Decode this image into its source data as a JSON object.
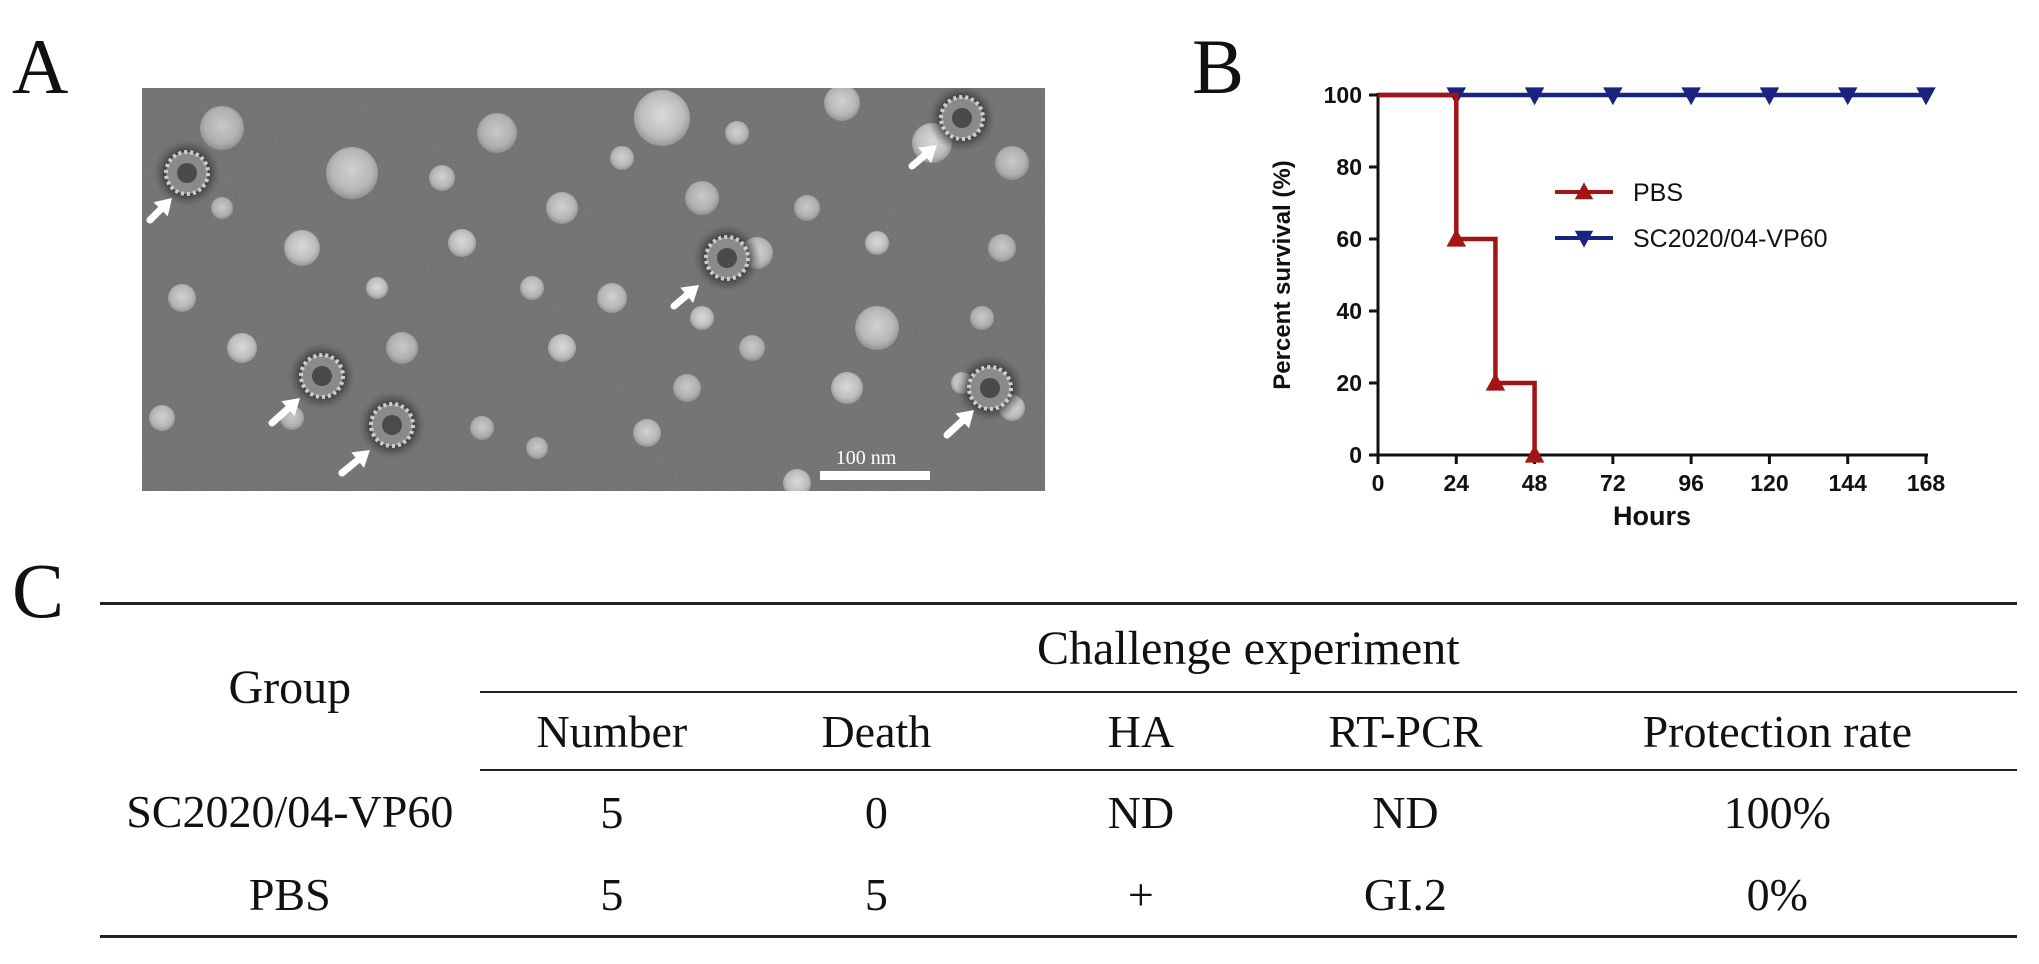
{
  "panels": {
    "a": "A",
    "b": "B",
    "c": "C"
  },
  "micrograph": {
    "scale_bar_label": "100 nm",
    "colors": {
      "background": "#7b7b7b",
      "particle_light": "#d2d2d2",
      "particle_dark": "#2e2e2e",
      "arrow": "#ffffff"
    }
  },
  "chart_data": {
    "type": "line",
    "step": true,
    "xlabel": "Hours",
    "ylabel": "Percent survival (%)",
    "xlim": [
      0,
      168
    ],
    "ylim": [
      0,
      100
    ],
    "xticks": [
      0,
      24,
      48,
      72,
      96,
      120,
      144,
      168
    ],
    "yticks": [
      0,
      20,
      40,
      60,
      80,
      100
    ],
    "grid": false,
    "legend_position": "center-right",
    "series": [
      {
        "name": "PBS",
        "color": "#a31515",
        "marker": "triangle-up",
        "points": [
          [
            0,
            100
          ],
          [
            24,
            100
          ],
          [
            24,
            60
          ],
          [
            36,
            60
          ],
          [
            36,
            20
          ],
          [
            48,
            20
          ],
          [
            48,
            0
          ]
        ],
        "marker_points": [
          [
            24,
            60
          ],
          [
            36,
            20
          ],
          [
            48,
            0
          ]
        ]
      },
      {
        "name": "SC2020/04-VP60",
        "color": "#1a237e",
        "marker": "triangle-down",
        "points": [
          [
            0,
            100
          ],
          [
            168,
            100
          ]
        ],
        "marker_points": [
          [
            24,
            100
          ],
          [
            48,
            100
          ],
          [
            72,
            100
          ],
          [
            96,
            100
          ],
          [
            120,
            100
          ],
          [
            144,
            100
          ],
          [
            168,
            100
          ]
        ]
      }
    ]
  },
  "table": {
    "group_header": "Group",
    "span_header": "Challenge experiment",
    "columns": [
      "Number",
      "Death",
      "HA",
      "RT-PCR",
      "Protection rate"
    ],
    "rows": [
      {
        "group": "SC2020/04-VP60",
        "values": [
          "5",
          "0",
          "ND",
          "ND",
          "100%"
        ]
      },
      {
        "group": "PBS",
        "values": [
          "5",
          "5",
          "+",
          "GI.2",
          "0%"
        ]
      }
    ]
  }
}
